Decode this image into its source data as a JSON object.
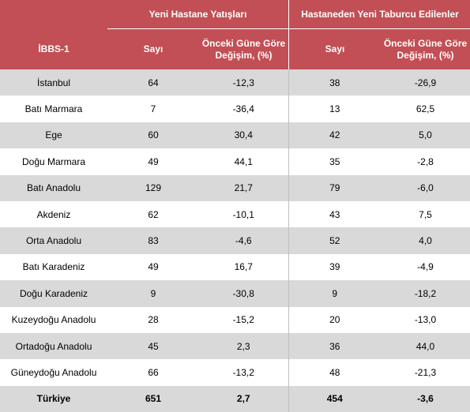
{
  "table": {
    "group_headers": [
      "Yeni Hastane Yatışları",
      "Hastaneden Yeni Taburcu Edilenler"
    ],
    "region_header": "İBBS-1",
    "sub_headers": [
      "Sayı",
      "Önceki Güne Göre Değişim, (%)",
      "Sayı",
      "Önceki Güne Göre Değişim, (%)"
    ],
    "rows": [
      [
        "İstanbul",
        "64",
        "-12,3",
        "38",
        "-26,9"
      ],
      [
        "Batı Marmara",
        "7",
        "-36,4",
        "13",
        "62,5"
      ],
      [
        "Ege",
        "60",
        "30,4",
        "42",
        "5,0"
      ],
      [
        "Doğu Marmara",
        "49",
        "44,1",
        "35",
        "-2,8"
      ],
      [
        "Batı Anadolu",
        "129",
        "21,7",
        "79",
        "-6,0"
      ],
      [
        "Akdeniz",
        "62",
        "-10,1",
        "43",
        "7,5"
      ],
      [
        "Orta Anadolu",
        "83",
        "-4,6",
        "52",
        "4,0"
      ],
      [
        "Batı Karadeniz",
        "49",
        "16,7",
        "39",
        "-4,9"
      ],
      [
        "Doğu Karadeniz",
        "9",
        "-30,8",
        "9",
        "-18,2"
      ],
      [
        "Kuzeydoğu Anadolu",
        "28",
        "-15,2",
        "20",
        "-13,0"
      ],
      [
        "Ortadoğu Anadolu",
        "45",
        "2,3",
        "36",
        "44,0"
      ],
      [
        "Güneydoğu Anadolu",
        "66",
        "-13,2",
        "48",
        "-21,3"
      ]
    ],
    "total": [
      "Türkiye",
      "651",
      "2,7",
      "454",
      "-3,6"
    ]
  },
  "colors": {
    "header_bg": "#c24f55",
    "header_text": "#ffffff",
    "stripe": "#d9d9d9",
    "row_alt": "#ffffff"
  }
}
